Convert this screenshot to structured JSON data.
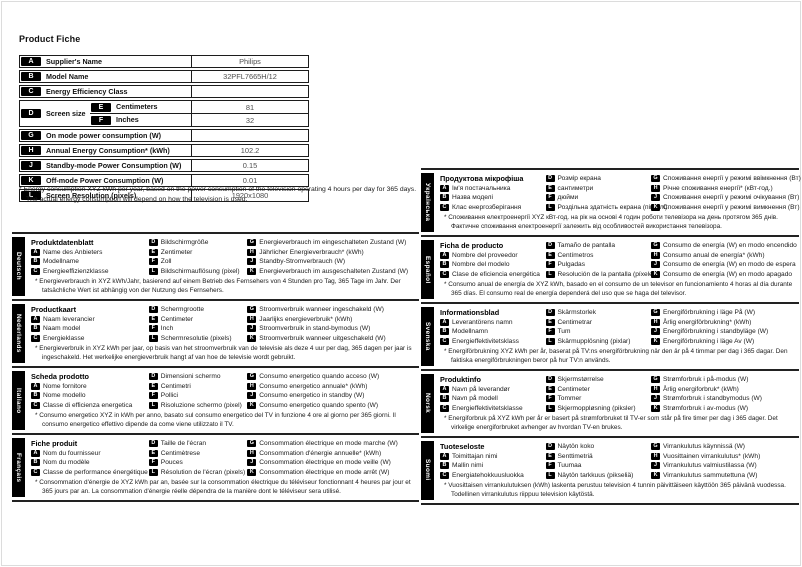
{
  "page": {
    "title": "Product Fiche",
    "background": "#ffffff",
    "ink_color": "#000000"
  },
  "fiche_table": {
    "rows": [
      {
        "key": "A",
        "label": "Supplier's Name",
        "value": "Philips"
      },
      {
        "key": "B",
        "label": "Model Name",
        "value": "32PFL7665H/12"
      },
      {
        "key": "C",
        "label": "Energy Efficiency Class",
        "value": ""
      },
      {
        "key": "D",
        "label": "Screen size",
        "type": "group",
        "sub": [
          {
            "key": "E",
            "label": "Centimeters",
            "value": "81"
          },
          {
            "key": "F",
            "label": "Inches",
            "value": "32"
          }
        ]
      },
      {
        "key": "G",
        "label": "On mode power consumption (W)",
        "value": ""
      },
      {
        "key": "H",
        "label": "Annual Energy Consumption* (kWh)",
        "value": "102.2"
      },
      {
        "key": "J",
        "label": "Standby-mode Power Consumption (W)",
        "value": "0.15"
      },
      {
        "key": "K",
        "label": "Off-mode Power Consumption (W)",
        "value": "0.01"
      },
      {
        "key": "L",
        "label": "Screen Resolution (pixels)",
        "value": "1920x1080"
      }
    ],
    "footnote_lines": [
      "* Energy consumption XYZ kWh per year, based on the power consumption of the television operating 4 hours per day for 365 days.",
      "The actual energy consumption will depend on how the television is used."
    ]
  },
  "sections_left": [
    {
      "language": "Deutsch",
      "title": "Produktdatenblatt",
      "a": "Name des Anbieters",
      "b": "Modellname",
      "c": "Energieeffizienzklasse",
      "d": "Bildschirmgröße",
      "e": "Zentimeter",
      "f": "Zoll",
      "l": "Bildschirmauflösung (pixel)",
      "g": "Energieverbrauch im eingeschalteten Zustand (W)",
      "h": "Jährlicher Energieverbrauch* (kWh)",
      "j": "Standby-Stromverbrauch (W)",
      "k": "Energieverbrauch im ausgeschalteten Zustand (W)",
      "footnote": "* Energieverbrauch in XYZ kWh/Jahr, basierend auf einem Betrieb des Fernsehers von 4 Stunden pro Tag, 365 Tage im Jahr. Der tatsächliche Wert ist abhängig von der Nutzung des Fernsehers."
    },
    {
      "language": "Nederlands",
      "title": "Productkaart",
      "a": "Naam leverancier",
      "b": "Naam model",
      "c": "Energieklasse",
      "d": "Schermgrootte",
      "e": "Centimeter",
      "f": "Inch",
      "l": "Schermresolutie (pixels)",
      "g": "Stroomverbruik wanneer ingeschakeld (W)",
      "h": "Jaarlijks energieverbruik* (kWh)",
      "j": "Stroomverbruik in stand-bymodus (W)",
      "k": "Stroomverbruik wanneer uitgeschakeld (W)",
      "footnote": "* Energieverbruik in XYZ kWh per jaar, op basis van het stroomverbruik van de televisie als deze 4 uur per dag, 365 dagen per jaar is ingeschakeld. Het werkelijke energieverbruik hangt af van hoe de televisie wordt gebruikt."
    },
    {
      "language": "Italiano",
      "title": "Scheda prodotto",
      "a": "Nome fornitore",
      "b": "Nome modello",
      "c": "Classe di efficienza energetica",
      "d": "Dimensioni schermo",
      "e": "Centimetri",
      "f": "Pollici",
      "l": "Risoluzione schermo (pixel)",
      "g": "Consumo energetico quando acceso (W)",
      "h": "Consumo energetico annuale* (kWh)",
      "j": "Consumo energetico in standby (W)",
      "k": "Consumo energetico quando spento (W)",
      "footnote": "* Consumo energetico XYZ in kWh per anno, basato sul consumo energetico del TV in funzione 4 ore al giorno per 365 giorni. Il consumo energetico effettivo dipende da come viene utilizzato il TV."
    },
    {
      "language": "Français",
      "title": "Fiche produit",
      "a": "Nom du fournisseur",
      "b": "Nom du modèle",
      "c": "Classe de performance énergétique",
      "d": "Taille de l'écran",
      "e": "Centimètrese",
      "f": "Pouces",
      "l": "Résolution de l'écran (pixels)",
      "g": "Consommation électrique en mode marche (W)",
      "h": "Consommation d'énergie annuelle* (kWh)",
      "j": "Consommation électrique en mode veille (W)",
      "k": "Consommation électrique en mode arrêt (W)",
      "footnote": "* Consommation d'énergie de XYZ kWh par an, basée sur la consommation électrique du téléviseur fonctionnant 4 heures par jour et 365 jours par an. La consommation d'énergie réelle dépendra de la manière dont le téléviseur sera utilisé."
    }
  ],
  "sections_right": [
    {
      "language": "Українська",
      "title": "Продуктова мікрофіша",
      "a": "Ім'я постачальника",
      "b": "Назва моделі",
      "c": "Клас енергозберігання",
      "d": "Розмір екрана",
      "e": "сантиметри",
      "f": "дюйми",
      "l": "Роздільна здатність екрана (пікселі)",
      "g": "Споживання енергії у режимі ввімкнення (Вт)",
      "h": "Річне споживання енергії* (кВт-год.)",
      "j": "Споживання енергії у режимі очікування (Вт)",
      "k": "Споживання енергії у режимі вимкнення (Вт)",
      "footnote": "* Споживання електроенергії XYZ кВт-год. на рік на основі 4 годин роботи телевізора на день протягом 365 днів. Фактичне споживання електроенергії залежить від особливостей використання телевізора."
    },
    {
      "language": "Español",
      "title": "Ficha de producto",
      "a": "Nombre del proveedor",
      "b": "Nombre del modelo",
      "c": "Clase de eficiencia energética",
      "d": "Tamaño de pantalla",
      "e": "Centímetros",
      "f": "Pulgadas",
      "l": "Resolución de la pantalla (píxeles)",
      "g": "Consumo de energía (W) en modo encendido",
      "h": "Consumo anual de energía* (kWh)",
      "j": "Consumo de energía (W) en modo de espera",
      "k": "Consumo de energía (W) en modo apagado",
      "footnote": "* Consumo anual de energía de XYZ kWh, basado en el consumo de un televisor en funcionamiento 4 horas al día durante 365 días. El consumo real de energía dependerá del uso que se haga del televisor."
    },
    {
      "language": "Svenska",
      "title": "Informationsblad",
      "a": "Leverantörens namn",
      "b": "Modellnamn",
      "c": "Energieffektivitetsklass",
      "d": "Skärmstorlek",
      "e": "Centimetrar",
      "f": "Tum",
      "l": "Skärmupplösning (pixlar)",
      "g": "Energiförbrukning i läge På (W)",
      "h": "Årlig energiförbrukning* (kWh)",
      "j": "Energiförbrukning i standbyläge (W)",
      "k": "Energiförbrukning i läge Av (W)",
      "footnote": "* Energiförbrukning XYZ kWh per år, baserat på TV:ns energiförbrukning när den är på 4 timmar per dag i 365 dagar. Den faktiska energiförbrukningen beror på hur TV:n används."
    },
    {
      "language": "Norsk",
      "title": "Produktinfo",
      "a": "Navn på leverandør",
      "b": "Navn på modell",
      "c": "Energieffektivitetsklasse",
      "d": "Skjermstørrelse",
      "e": "Centimeter",
      "f": "Tommer",
      "l": "Skjermoppløsning (piksler)",
      "g": "Strømforbruk i på-modus (W)",
      "h": "Årlig energiforbruk* (kWh)",
      "j": "Strømforbruk i standbymodus (W)",
      "k": "Strømforbruk i av-modus (W)",
      "footnote": "* Energiforbruk på XYZ kWh per år er basert på strømforbruket til TV-er som står på fire timer per dag i 365 dager. Det virkelige energiforbruket avhenger av hvordan TV-en brukes."
    },
    {
      "language": "Suomi",
      "title": "Tuoteseloste",
      "a": "Toimittajan nimi",
      "b": "Mallin nimi",
      "c": "Energiatehokkuusluokka",
      "d": "Näytön koko",
      "e": "Senttimetriä",
      "f": "Tuumaa",
      "l": "Näytön tarkkuus (pikseliä)",
      "g": "Virrankulutus käynnissä (W)",
      "h": "Vuosittainen virrankulutus* (kWh)",
      "j": "Virrankulutus valmiustilassa (W)",
      "k": "Virrankulutus sammutettuna (W)",
      "footnote": "* Vuosittaisen virrankulutuksen (kWh) laskenta perustuu television 4 tunnin päivittäiseen käyttöön 365 päivänä vuodessa. Todellinen virrankulutus riippuu television käytöstä."
    }
  ]
}
